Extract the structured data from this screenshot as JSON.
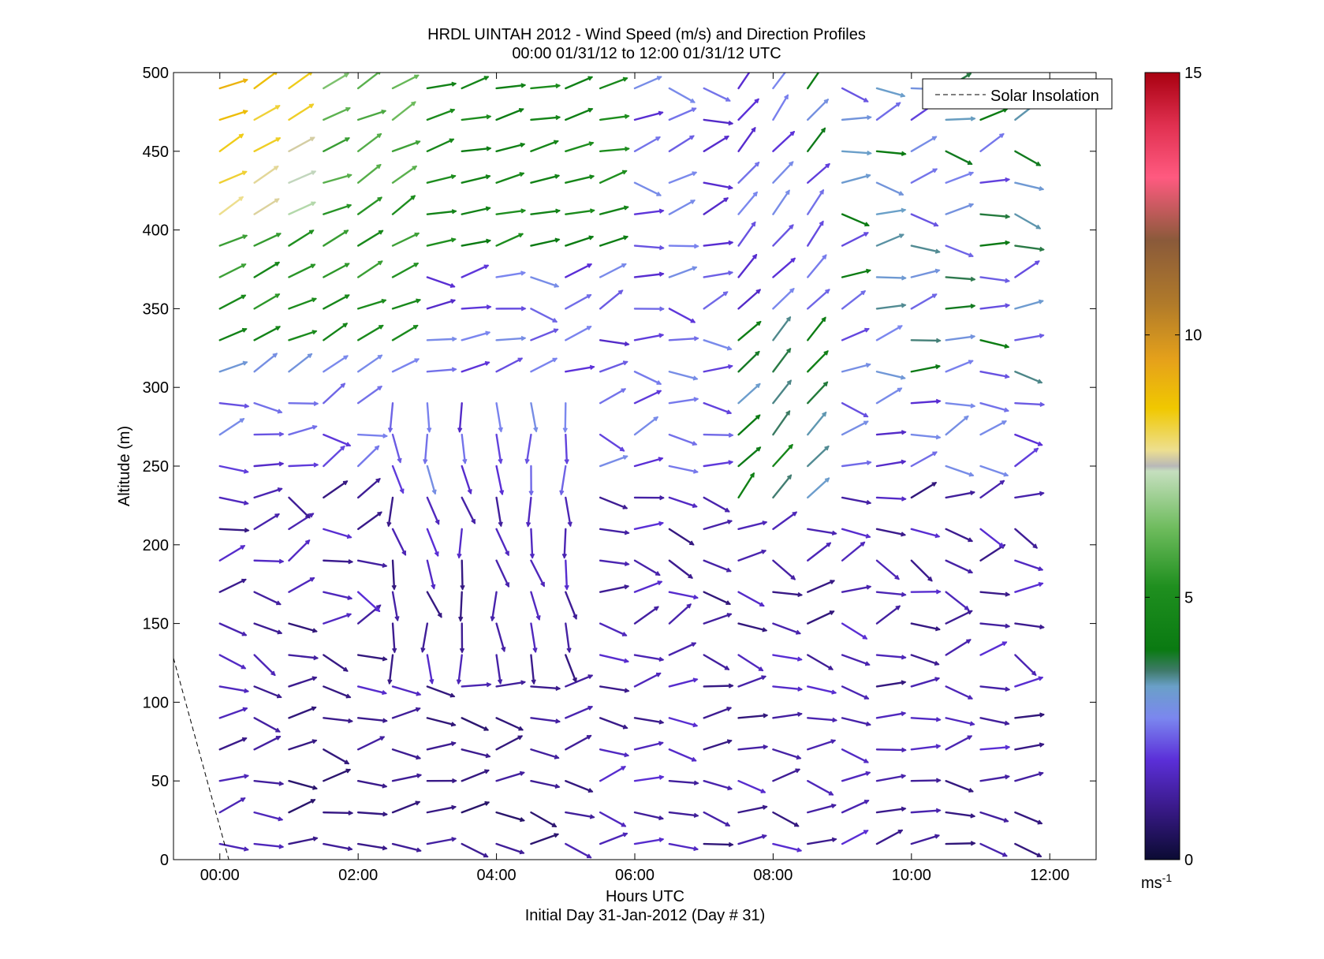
{
  "chart_data": {
    "type": "quiver",
    "title": "HRDL UINTAH 2012 - Wind Speed (m/s) and Direction Profiles",
    "subtitle": "00:00 01/31/12 to 12:00 01/31/12  UTC",
    "xlabel": "Hours UTC",
    "xlabel2": "Initial Day 31-Jan-2012 (Day # 31)",
    "ylabel": "Altitude (m)",
    "xlim": [
      -0.67,
      12.67
    ],
    "ylim": [
      0,
      500
    ],
    "x_ticks": [
      {
        "value": 0,
        "label": "00:00"
      },
      {
        "value": 2,
        "label": "02:00"
      },
      {
        "value": 4,
        "label": "04:00"
      },
      {
        "value": 6,
        "label": "06:00"
      },
      {
        "value": 8,
        "label": "08:00"
      },
      {
        "value": 10,
        "label": "10:00"
      },
      {
        "value": 12,
        "label": "12:00"
      }
    ],
    "y_ticks": [
      {
        "value": 0,
        "label": "0"
      },
      {
        "value": 50,
        "label": "50"
      },
      {
        "value": 100,
        "label": "100"
      },
      {
        "value": 150,
        "label": "150"
      },
      {
        "value": 200,
        "label": "200"
      },
      {
        "value": 250,
        "label": "250"
      },
      {
        "value": 300,
        "label": "300"
      },
      {
        "value": 350,
        "label": "350"
      },
      {
        "value": 400,
        "label": "400"
      },
      {
        "value": 450,
        "label": "450"
      },
      {
        "value": 500,
        "label": "500"
      }
    ],
    "legend": {
      "label": "Solar Insolation",
      "position": "top-right",
      "line_style": "dashed"
    },
    "solar_insolation": {
      "x": [
        -0.67,
        0.13
      ],
      "y": [
        128,
        0
      ]
    },
    "colorbar": {
      "min": 0,
      "max": 15,
      "ticks": [
        {
          "value": 0,
          "label": "0"
        },
        {
          "value": 5,
          "label": "5"
        },
        {
          "value": 10,
          "label": "10"
        },
        {
          "value": 15,
          "label": "15"
        }
      ],
      "unit_label": "ms",
      "unit_exponent": "-1",
      "colormap": [
        {
          "v": 0.0,
          "c": "#0b0b33"
        },
        {
          "v": 1.0,
          "c": "#3a1a8a"
        },
        {
          "v": 1.9,
          "c": "#5b2fd8"
        },
        {
          "v": 2.7,
          "c": "#7b87ef"
        },
        {
          "v": 3.3,
          "c": "#6aa0c8"
        },
        {
          "v": 3.6,
          "c": "#3f7a6a"
        },
        {
          "v": 4.0,
          "c": "#0a7a12"
        },
        {
          "v": 5.2,
          "c": "#1f8f1f"
        },
        {
          "v": 6.3,
          "c": "#6dbb5c"
        },
        {
          "v": 7.4,
          "c": "#c5dfbe"
        },
        {
          "v": 7.5,
          "c": "#b8b8b8"
        },
        {
          "v": 7.8,
          "c": "#eddf90"
        },
        {
          "v": 8.6,
          "c": "#f0c800"
        },
        {
          "v": 9.5,
          "c": "#e6a21a"
        },
        {
          "v": 10.6,
          "c": "#b07a2a"
        },
        {
          "v": 11.8,
          "c": "#8a5a3a"
        },
        {
          "v": 13.0,
          "c": "#ff5a80"
        },
        {
          "v": 14.0,
          "c": "#e03050"
        },
        {
          "v": 15.0,
          "c": "#a80010"
        }
      ]
    },
    "field_grid": {
      "times": [
        0.0,
        0.5,
        1.0,
        1.5,
        2.0,
        2.5,
        3.0,
        3.5,
        4.0,
        4.5,
        5.0,
        5.5,
        6.0,
        6.5,
        7.0,
        7.5,
        8.0,
        8.5,
        9.0,
        9.5,
        10.0,
        10.5,
        11.0,
        11.5
      ],
      "altitudes": [
        10,
        30,
        50,
        70,
        90,
        110,
        130,
        150,
        170,
        190,
        210,
        230,
        250,
        270,
        290,
        310,
        330,
        350,
        370,
        390,
        410,
        430,
        450,
        470,
        490
      ]
    },
    "wind_field_summary": "Light winds (0-2 m/s, dark navy/purple) below ~300 m with variable directions; 3-6 m/s green and light-blue westerly to southwesterly winds above ~300 m before 03:00 UTC and again around 07:00-09:00 UTC; 7-9 m/s yellow winds near 420-490 m at 00:00-01:00 UTC."
  }
}
